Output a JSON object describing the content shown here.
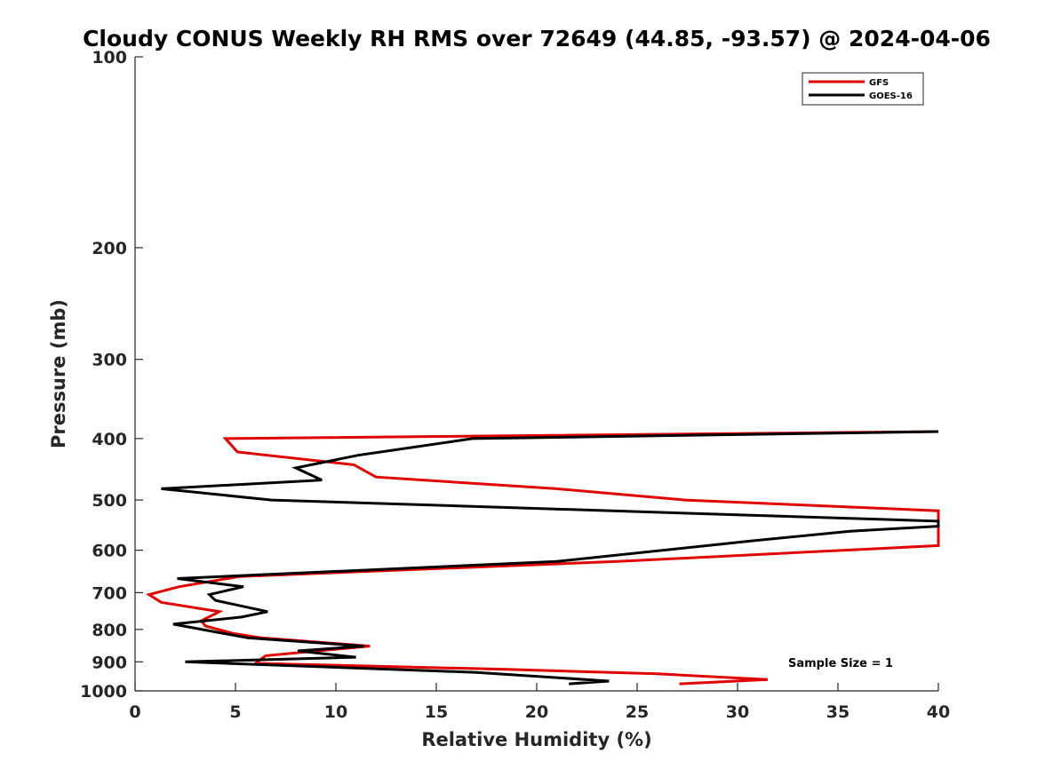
{
  "chart_data": {
    "type": "line",
    "title": "Cloudy CONUS Weekly RH RMS over 72649 (44.85, -93.57) @ 2024-04-06",
    "xlabel": "Relative Humidity (%)",
    "ylabel": "Pressure (mb)",
    "xlim": [
      0,
      40
    ],
    "ylim": [
      1000,
      100
    ],
    "y_scale": "log",
    "x_ticks": [
      0,
      5,
      10,
      15,
      20,
      25,
      30,
      35,
      40
    ],
    "x_tick_labels": [
      "0",
      "5",
      "10",
      "15",
      "20",
      "25",
      "30",
      "35",
      "40"
    ],
    "y_ticks": [
      100,
      200,
      300,
      400,
      500,
      600,
      700,
      800,
      900,
      1000
    ],
    "y_tick_labels": [
      "100",
      "200",
      "300",
      "400",
      "500",
      "600",
      "700",
      "800",
      "900",
      "1000"
    ],
    "grid": false,
    "legend_position": "top-right",
    "annotation": "Sample Size = 1",
    "series": [
      {
        "name": "GFS",
        "color": "#e00000",
        "points": [
          [
            27.1,
            975
          ],
          [
            31.5,
            960
          ],
          [
            26.0,
            940
          ],
          [
            18.5,
            925
          ],
          [
            6.0,
            905
          ],
          [
            6.5,
            880
          ],
          [
            11.7,
            850
          ],
          [
            6.3,
            825
          ],
          [
            4.9,
            812
          ],
          [
            3.5,
            790
          ],
          [
            3.3,
            775
          ],
          [
            4.2,
            750
          ],
          [
            1.3,
            725
          ],
          [
            0.7,
            705
          ],
          [
            2.2,
            685
          ],
          [
            5.2,
            660
          ],
          [
            24.0,
            625
          ],
          [
            40.0,
            590
          ],
          [
            40.0,
            520
          ],
          [
            27.4,
            500
          ],
          [
            21.0,
            480
          ],
          [
            12.0,
            460
          ],
          [
            10.9,
            440
          ],
          [
            5.1,
            420
          ],
          [
            4.5,
            400
          ],
          [
            40.0,
            390
          ]
        ]
      },
      {
        "name": "GOES-16",
        "color": "#000000",
        "points": [
          [
            21.6,
            975
          ],
          [
            23.6,
            965
          ],
          [
            17.0,
            935
          ],
          [
            2.5,
            900
          ],
          [
            11.0,
            885
          ],
          [
            8.1,
            865
          ],
          [
            11.4,
            850
          ],
          [
            5.6,
            825
          ],
          [
            1.9,
            785
          ],
          [
            5.3,
            765
          ],
          [
            6.6,
            750
          ],
          [
            4.0,
            720
          ],
          [
            3.7,
            705
          ],
          [
            5.4,
            685
          ],
          [
            2.1,
            665
          ],
          [
            21.0,
            625
          ],
          [
            30.7,
            580
          ],
          [
            35.6,
            560
          ],
          [
            40.0,
            550
          ],
          [
            40.0,
            540
          ],
          [
            6.8,
            500
          ],
          [
            1.3,
            480
          ],
          [
            9.3,
            465
          ],
          [
            8.0,
            445
          ],
          [
            11.1,
            425
          ],
          [
            16.8,
            400
          ],
          [
            40.0,
            390
          ]
        ]
      }
    ]
  }
}
